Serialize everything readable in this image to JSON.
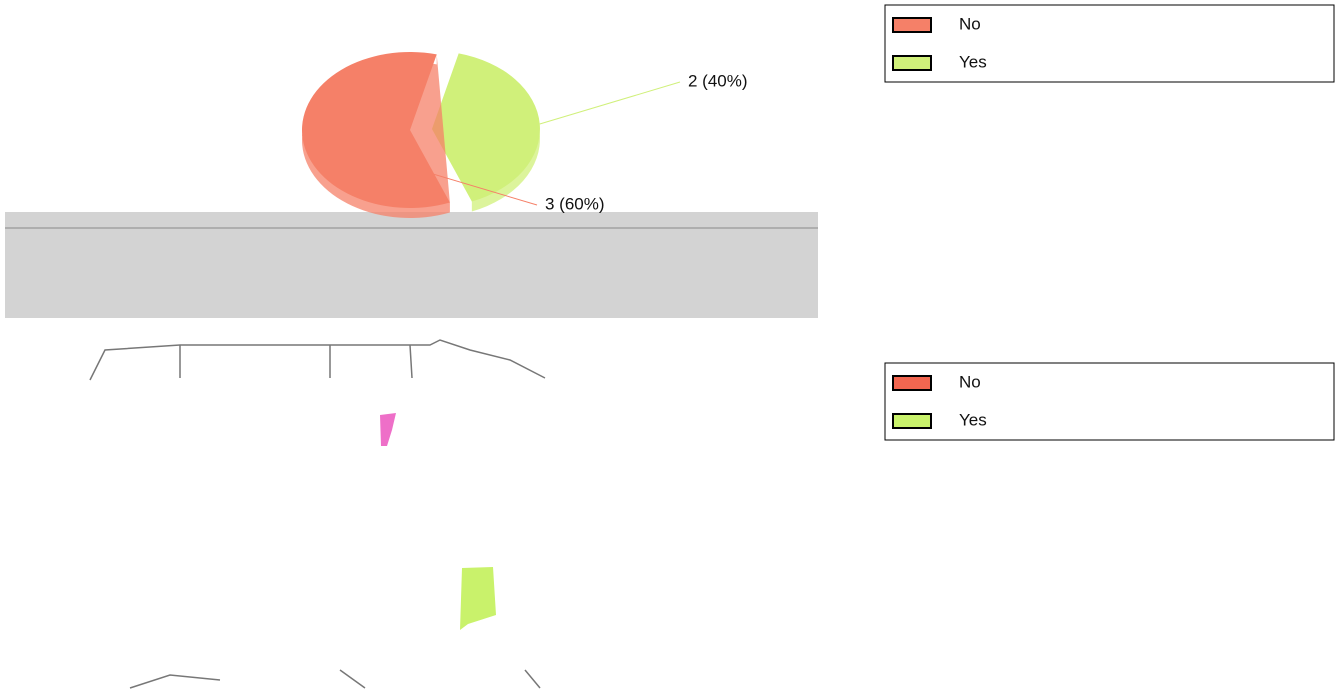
{
  "chart_data": [
    {
      "type": "pie",
      "categories": [
        "No",
        "Yes"
      ],
      "values": [
        3,
        2
      ],
      "value_labels": [
        "3 (60%)",
        "2 (40%)"
      ],
      "colors": [
        "#f58068",
        "#d0f07a"
      ],
      "exploded": [
        false,
        true
      ]
    },
    {
      "type": "map",
      "series": [
        {
          "name": "No",
          "color": "#f26650"
        },
        {
          "name": "Yes",
          "color": "#c9f26b"
        }
      ]
    }
  ]
}
